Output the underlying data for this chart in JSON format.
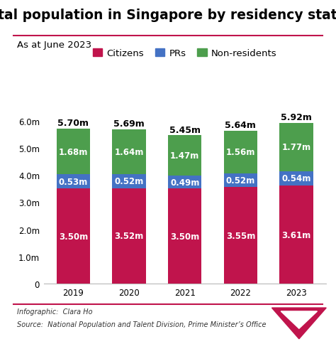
{
  "title": "Total population in Singapore by residency status",
  "subtitle": "As at June 2023",
  "years": [
    2019,
    2020,
    2021,
    2022,
    2023
  ],
  "citizens": [
    3.5,
    3.52,
    3.5,
    3.55,
    3.61
  ],
  "prs": [
    0.53,
    0.52,
    0.49,
    0.52,
    0.54
  ],
  "non_residents": [
    1.68,
    1.64,
    1.47,
    1.56,
    1.77
  ],
  "citizen_labels": [
    "3.50m",
    "3.52m",
    "3.50m",
    "3.55m",
    "3.61m"
  ],
  "pr_labels": [
    "0.53m",
    "0.52m",
    "0.49m",
    "0.52m",
    "0.54m"
  ],
  "nr_labels": [
    "1.68m",
    "1.64m",
    "1.47m",
    "1.56m",
    "1.77m"
  ],
  "total_labels": [
    "5.70m",
    "5.69m",
    "5.45m",
    "5.64m",
    "5.92m"
  ],
  "citizen_color": "#c0144c",
  "pr_color": "#4472c4",
  "nr_color": "#4d9e4d",
  "background_color": "#ffffff",
  "bar_width": 0.6,
  "ylim": [
    0,
    6.6
  ],
  "yticks": [
    0,
    1.0,
    2.0,
    3.0,
    4.0,
    5.0,
    6.0
  ],
  "ytick_labels": [
    "0",
    "1.0m",
    "2.0m",
    "3.0m",
    "4.0m",
    "5.0m",
    "6.0m"
  ],
  "legend_labels": [
    "Citizens",
    "PRs",
    "Non-residents"
  ],
  "footer_infographic": "Infographic:  Clara Ho",
  "footer_source": "Source:  National Population and Talent Division, Prime Minister’s Office",
  "title_fontsize": 13.5,
  "subtitle_fontsize": 9.5,
  "label_fontsize": 8.5,
  "total_fontsize": 9,
  "axis_fontsize": 8.5,
  "legend_fontsize": 9.5,
  "separator_color": "#c0144c",
  "footer_text_color": "#333333"
}
